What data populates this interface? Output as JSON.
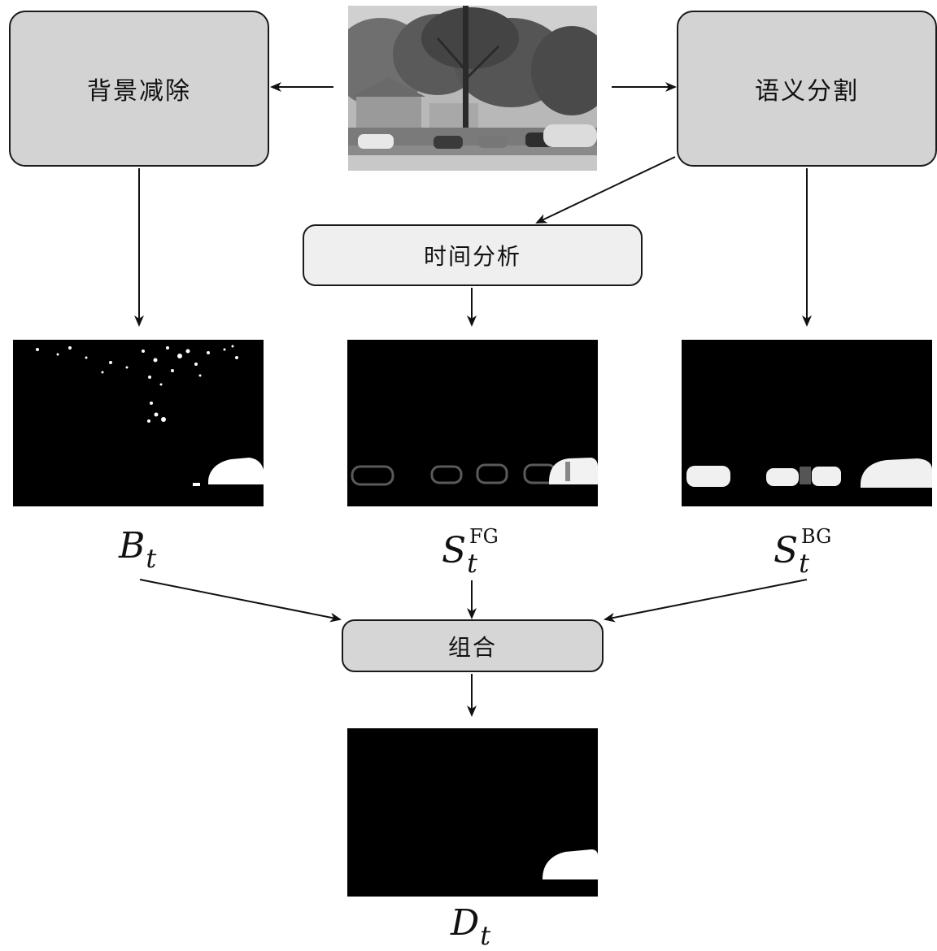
{
  "nodes": {
    "background_subtraction": "背景减除",
    "semantic_segmentation": "语义分割",
    "temporal_analysis": "时间分析",
    "combination": "组合"
  },
  "labels": {
    "bt": {
      "main": "B",
      "sub": "t"
    },
    "sfg": {
      "main": "S",
      "sub": "t",
      "sup": "FG"
    },
    "sbg": {
      "main": "S",
      "sub": "t",
      "sup": "BG"
    },
    "dt": {
      "main": "D",
      "sub": "t"
    }
  }
}
